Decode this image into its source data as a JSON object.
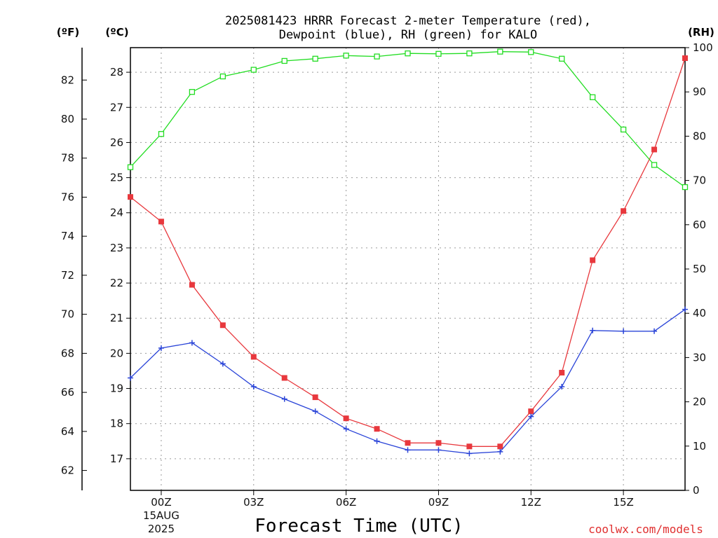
{
  "chart_data": {
    "type": "line",
    "title_line1": "2025081423 HRRR Forecast 2-meter Temperature (red),",
    "title_line2": "Dewpoint (blue), RH (green) for KALO",
    "xlabel": "Forecast Time (UTC)",
    "x_ticks": [
      {
        "x": 0,
        "label": "00Z",
        "sub1": "15AUG",
        "sub2": "2025"
      },
      {
        "x": 3,
        "label": "03Z"
      },
      {
        "x": 6,
        "label": "06Z"
      },
      {
        "x": 9,
        "label": "09Z"
      },
      {
        "x": 12,
        "label": "12Z"
      },
      {
        "x": 15,
        "label": "15Z"
      }
    ],
    "xlim": [
      -1,
      17
    ],
    "x": [
      -1,
      0,
      1,
      2,
      3,
      4,
      5,
      6,
      7,
      8,
      9,
      10,
      11,
      12,
      13,
      14,
      15,
      16,
      17
    ],
    "axes": {
      "f": {
        "unit_label": "(ºF)",
        "ticks": [
          "62",
          "64",
          "66",
          "68",
          "70",
          "72",
          "74",
          "76",
          "78",
          "80",
          "82"
        ]
      },
      "c": {
        "unit_label": "(ºC)",
        "ylim": [
          16.1,
          28.7
        ],
        "ticks": [
          "17",
          "18",
          "19",
          "20",
          "21",
          "22",
          "23",
          "24",
          "25",
          "26",
          "27",
          "28"
        ]
      },
      "rh": {
        "unit_label": "(RH)",
        "ylim": [
          0,
          100
        ],
        "ticks": [
          "0",
          "10",
          "20",
          "30",
          "40",
          "50",
          "60",
          "70",
          "80",
          "90",
          "100"
        ]
      }
    },
    "series": [
      {
        "name": "Temperature",
        "axis": "c",
        "color": "#e8383d",
        "marker": "filled-square",
        "values": [
          24.45,
          23.75,
          21.95,
          20.8,
          19.9,
          19.3,
          18.75,
          18.15,
          17.85,
          17.45,
          17.45,
          17.35,
          17.35,
          18.35,
          19.45,
          22.65,
          24.05,
          25.8,
          28.4
        ]
      },
      {
        "name": "Dewpoint",
        "axis": "c",
        "color": "#2a44d8",
        "marker": "plus",
        "values": [
          19.3,
          20.15,
          20.3,
          19.7,
          19.05,
          18.7,
          18.35,
          17.85,
          17.5,
          17.25,
          17.25,
          17.15,
          17.2,
          18.2,
          19.05,
          20.65,
          20.63,
          20.63,
          21.25
        ]
      },
      {
        "name": "RH",
        "axis": "rh",
        "color": "#22dd22",
        "marker": "open-square",
        "values": [
          73,
          80.5,
          90,
          93.5,
          95,
          97,
          97.5,
          98.2,
          98,
          98.7,
          98.6,
          98.7,
          99.1,
          99,
          97.5,
          88.8,
          81.5,
          73.5,
          68.5
        ]
      }
    ]
  },
  "credit": "coolwx.com/models"
}
